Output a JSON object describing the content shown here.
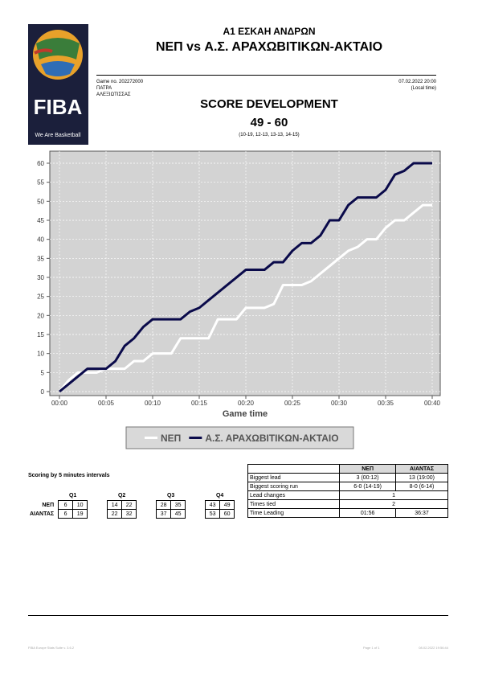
{
  "logo": {
    "name": "FIBA",
    "tagline": "We Are Basketball"
  },
  "header": {
    "league": "A1 ΕΣΚΑΗ ΑΝΔΡΩΝ",
    "matchup": "ΝΕΠ vs Α.Σ. ΑΡΑΧΩΒΙΤΙΚΩΝ-ΑΚΤΑΙΟ",
    "game_no": "Game no. 202272000",
    "city": "ΠΑΤΡΑ",
    "venue": "ΑΛΕΞΙΩΤΙΣΣΑΣ",
    "date": "07.02.2022 20:00",
    "time_note": "(Local time)",
    "report_title": "SCORE DEVELOPMENT",
    "final_score": "49 - 60",
    "period_scores": "(10-19, 12-13, 13-13, 14-15)"
  },
  "chart_data": {
    "type": "line",
    "x_label": "Game time",
    "xlim": [
      0,
      40
    ],
    "xticks": [
      {
        "value": 0,
        "label": "00:00"
      },
      {
        "value": 5,
        "label": "00:05"
      },
      {
        "value": 10,
        "label": "00:10"
      },
      {
        "value": 15,
        "label": "00:15"
      },
      {
        "value": 20,
        "label": "00:20"
      },
      {
        "value": 25,
        "label": "00:25"
      },
      {
        "value": 30,
        "label": "00:30"
      },
      {
        "value": 35,
        "label": "00:35"
      },
      {
        "value": 40,
        "label": "00:40"
      }
    ],
    "ylim": [
      0,
      60
    ],
    "yticks": [
      0,
      5,
      10,
      15,
      20,
      25,
      30,
      35,
      40,
      45,
      50,
      55,
      60
    ],
    "grid": true,
    "series": [
      {
        "name": "ΝΕΠ",
        "color": "#ffffff",
        "x": [
          0,
          1,
          2,
          4,
          5,
          7,
          8,
          9,
          10,
          12,
          13,
          16,
          17,
          19,
          20,
          22,
          23,
          24,
          26,
          27,
          29,
          30,
          31,
          32,
          33,
          34,
          35,
          36,
          37,
          39,
          40
        ],
        "values": [
          0,
          3,
          5,
          5,
          6,
          6,
          8,
          8,
          10,
          10,
          14,
          14,
          19,
          19,
          22,
          22,
          23,
          28,
          28,
          29,
          33,
          35,
          37,
          38,
          40,
          40,
          43,
          45,
          45,
          49,
          49
        ]
      },
      {
        "name": "Α.Σ. ΑΡΑΧΩΒΙΤΙΚΩΝ-ΑΚΤΑΙΟ",
        "color": "#0a0a4a",
        "x": [
          0,
          1,
          2,
          3,
          5,
          6,
          7,
          8,
          9,
          10,
          13,
          14,
          15,
          20,
          22,
          23,
          24,
          25,
          26,
          27,
          28,
          29,
          30,
          31,
          32,
          34,
          35,
          36,
          37,
          38,
          40
        ],
        "values": [
          0,
          2,
          4,
          6,
          6,
          8,
          12,
          14,
          17,
          19,
          19,
          21,
          22,
          32,
          32,
          34,
          34,
          37,
          39,
          39,
          41,
          45,
          45,
          49,
          51,
          51,
          53,
          57,
          58,
          60,
          60
        ]
      }
    ]
  },
  "scoring": {
    "title": "Scoring by 5 minutes intervals",
    "quarters": [
      "Q1",
      "Q2",
      "Q3",
      "Q4"
    ],
    "teams": [
      {
        "name": "ΝΕΠ",
        "values": [
          6,
          10,
          14,
          22,
          28,
          35,
          43,
          49
        ]
      },
      {
        "name": "ΑΙΑΝΤΑΣ",
        "values": [
          6,
          19,
          22,
          32,
          37,
          45,
          53,
          60
        ]
      }
    ]
  },
  "stats": {
    "columns": [
      "ΝΕΠ",
      "ΑΙΑΝΤΑΣ"
    ],
    "rows": [
      [
        "Biggest lead",
        "3 (00:12)",
        "13 (19:00)"
      ],
      [
        "Biggest scoring run",
        "6-0 (14-19)",
        "8-0 (6-14)"
      ],
      [
        "Lead changes",
        "1"
      ],
      [
        "Times tied",
        "2"
      ],
      [
        "Time Leading",
        "01:56",
        "36:37"
      ]
    ]
  },
  "footer": {
    "left": "FIBA Europe Stats Suite v. 3.6.2",
    "center": "Page 1 of 1",
    "right": "08.02.2022 19:56:44"
  }
}
